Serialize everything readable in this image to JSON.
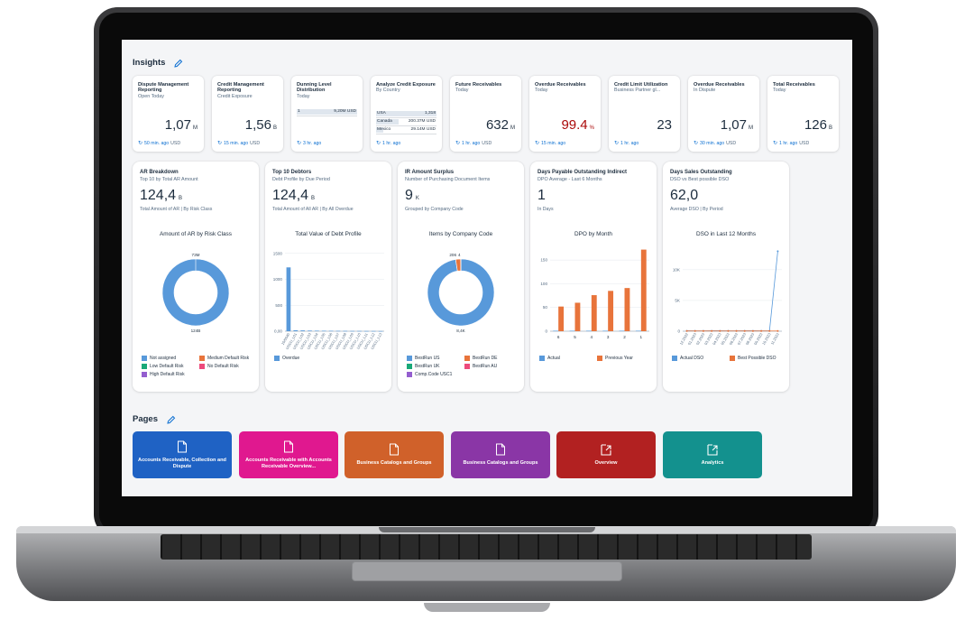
{
  "insights": {
    "title": "Insights",
    "tiles": [
      {
        "title": "Dispute Management Reporting",
        "subtitle": "Open Today",
        "value": "1,07",
        "scale": "M",
        "time": "50 min. ago",
        "unit": "USD"
      },
      {
        "title": "Credit Management Reporting",
        "subtitle": "Credit Exposure",
        "value": "1,56",
        "scale": "B",
        "time": "15 min. ago",
        "unit": "USD"
      },
      {
        "title": "Dunning Level Distribution",
        "subtitle": "Today",
        "time": "3 hr. ago",
        "unit": "",
        "bars": [
          {
            "label": "1",
            "value": "9,20M USD",
            "fraction": 1.0
          }
        ]
      },
      {
        "title": "Analyze Credit Exposure",
        "subtitle": "By Country",
        "time": "1 hr. ago",
        "unit": "",
        "bars": [
          {
            "label": "USA",
            "value": "1,318",
            "fraction": 1.0
          },
          {
            "label": "Canada",
            "value": "200.37M USD",
            "fraction": 0.38
          },
          {
            "label": "Mexico",
            "value": "29.14M USD",
            "fraction": 0.12
          }
        ]
      },
      {
        "title": "Future Receivables",
        "subtitle": "Today",
        "value": "632",
        "scale": "M",
        "time": "1 hr. ago",
        "unit": "USD"
      },
      {
        "title": "Overdue Receivables",
        "subtitle": "Today",
        "value": "99.4",
        "scale": "%",
        "time": "15 min. ago",
        "unit": "",
        "red": true
      },
      {
        "title": "Credit Limit Utilization",
        "subtitle": "Business Partner gl...",
        "value": "23",
        "scale": "",
        "time": "1 hr. ago",
        "unit": ""
      },
      {
        "title": "Overdue Receivables",
        "subtitle": "In Dispute",
        "value": "1,07",
        "scale": "M",
        "time": "30 min. ago",
        "unit": "USD"
      },
      {
        "title": "Total Receivables",
        "subtitle": "Today",
        "value": "126",
        "scale": "B",
        "time": "1 hr. ago",
        "unit": "USD"
      }
    ]
  },
  "cards": [
    {
      "title": "AR Breakdown",
      "subtitle": "Top 10 by Total AR Amount",
      "value": "124,4",
      "scale": "B",
      "desc": "Total Amount of AR | By Risk Class",
      "chart_title": "Amount of AR by Risk Class",
      "legend": [
        {
          "label": "Not assigned",
          "color": "#5899da"
        },
        {
          "label": "Medium Default Risk",
          "color": "#e8743b"
        },
        {
          "label": "Low Default Risk",
          "color": "#19a979"
        },
        {
          "label": "No Default Risk",
          "color": "#ed4a7b"
        },
        {
          "label": "High Default Risk",
          "color": "#945ecf"
        }
      ]
    },
    {
      "title": "Top 10 Debtors",
      "subtitle": "Debt Profile by Due Period",
      "value": "124,4",
      "scale": "B",
      "desc": "Total Amount of All AR | By All Overdue",
      "chart_title": "Total Value of Debt Profile",
      "legend": [
        {
          "label": "Overdue",
          "color": "#5899da"
        }
      ]
    },
    {
      "title": "IR Amount Surplus",
      "subtitle": "Number of Purchasing Document Items",
      "value": "9",
      "scale": "K",
      "desc": "Grouped by Company Code",
      "chart_title": "Items by Company Code",
      "legend": [
        {
          "label": "BestRun US",
          "color": "#5899da"
        },
        {
          "label": "BestRun DE",
          "color": "#e8743b"
        },
        {
          "label": "BestRun UK",
          "color": "#19a979"
        },
        {
          "label": "BestRun AU",
          "color": "#ed4a7b"
        },
        {
          "label": "Comp.Code USC1",
          "color": "#945ecf"
        }
      ]
    },
    {
      "title": "Days Payable Outstanding Indirect",
      "subtitle": "DPO Average - Last 6 Months",
      "value": "1",
      "scale": "",
      "desc": "In Days",
      "chart_title": "DPO by Month",
      "legend": [
        {
          "label": "Actual",
          "color": "#5899da"
        },
        {
          "label": "Previous Year",
          "color": "#e8743b"
        }
      ]
    },
    {
      "title": "Days Sales Outstanding",
      "subtitle": "DSO vs Best possible DSO",
      "value": "62,0",
      "scale": "",
      "desc": "Average DSO | By Period",
      "chart_title": "DSO in Last 12 Months",
      "legend": [
        {
          "label": "Actual DSO",
          "color": "#5899da"
        },
        {
          "label": "Best Possible DSO",
          "color": "#e8743b"
        }
      ]
    }
  ],
  "chart_data": [
    {
      "type": "pie",
      "title": "Amount of AR by Risk Class",
      "labels": [
        "Not assigned"
      ],
      "values": [
        124
      ],
      "annotations": [
        "73M",
        "124B"
      ]
    },
    {
      "type": "bar",
      "title": "Total Value of Debt Profile",
      "ylim": [
        0,
        1600
      ],
      "yticks": [
        "0,00",
        "500",
        "1000",
        "1500"
      ],
      "categories": [
        "10/0040",
        "USCU_L01",
        "USCU_L02",
        "USCU_L03",
        "USCU_L04",
        "USCU_L05",
        "USCU_L06",
        "USCU_L07",
        "USCU_L08",
        "USCU_L09",
        "USCU_L10",
        "USCU_L11",
        "USCU_L12",
        "USCU_L13"
      ],
      "series": [
        {
          "name": "Overdue",
          "values": [
            1230,
            18,
            15,
            12,
            10,
            9,
            8,
            7,
            6,
            5,
            5,
            4,
            4,
            3
          ]
        }
      ]
    },
    {
      "type": "pie",
      "title": "Items by Company Code",
      "labels": [
        "BestRun US",
        "BestRun DE",
        "BestRun UK",
        "BestRun AU",
        "Comp.Code USC1"
      ],
      "values": [
        8400,
        206,
        4,
        3,
        2
      ],
      "annotations": [
        "206",
        "4",
        "8,4K"
      ]
    },
    {
      "type": "bar",
      "title": "DPO by Month",
      "ylim": [
        0,
        175
      ],
      "yticks": [
        "0",
        "50",
        "100",
        "150"
      ],
      "categories": [
        "6",
        "5",
        "4",
        "3",
        "2",
        "1"
      ],
      "series": [
        {
          "name": "Actual",
          "values": [
            1,
            1,
            1,
            1,
            1,
            1
          ]
        },
        {
          "name": "Previous Year",
          "values": [
            52,
            60,
            76,
            85,
            91,
            172
          ]
        }
      ]
    },
    {
      "type": "line",
      "title": "DSO in Last 12 Months",
      "ylim": [
        0,
        13500
      ],
      "yticks": [
        "0",
        "5K",
        "10K"
      ],
      "categories": [
        "12.2022",
        "01.2023",
        "02.2023",
        "03.2023",
        "04.2023",
        "05.2023",
        "06.2023",
        "07.2023",
        "08.2023",
        "09.2023",
        "10.2023",
        "11.2023"
      ],
      "series": [
        {
          "name": "Actual DSO",
          "values": [
            62,
            60,
            58,
            61,
            63,
            60,
            59,
            62,
            61,
            60,
            62,
            13000
          ]
        },
        {
          "name": "Best Possible DSO",
          "values": [
            40,
            41,
            40,
            42,
            41,
            40,
            41,
            40,
            42,
            41,
            40,
            41
          ]
        }
      ]
    }
  ],
  "pages": {
    "title": "Pages",
    "tiles": [
      {
        "label": "Accounts Receivable, Collection and Dispute",
        "color": "#1f62c4",
        "icon": "document-icon"
      },
      {
        "label": "Accounts Receivable with Accounts Receivable Overview...",
        "color": "#e0188f",
        "icon": "document-icon"
      },
      {
        "label": "Business Catalogs and Groups",
        "color": "#d0612a",
        "icon": "document-icon"
      },
      {
        "label": "Business Catalogs and Groups",
        "color": "#8a36a6",
        "icon": "document-icon"
      },
      {
        "label": "Overview",
        "color": "#b22121",
        "icon": "launch-icon"
      },
      {
        "label": "Analytics",
        "color": "#13918e",
        "icon": "launch-icon"
      }
    ]
  }
}
